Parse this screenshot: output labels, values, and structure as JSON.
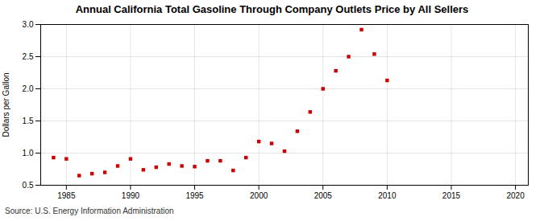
{
  "chart_data": {
    "type": "scatter",
    "title": "Annual California Total Gasoline Through Company Outlets Price by All Sellers",
    "ylabel": "Dollars per Gallon",
    "source": "Source: U.S. Energy Information Administration",
    "color": "#cc0000",
    "marker": "square",
    "grid": true,
    "xlim": [
      1983,
      2021
    ],
    "ylim": [
      0.5,
      3.0
    ],
    "xticks": [
      1985,
      1990,
      1995,
      2000,
      2005,
      2010,
      2015,
      2020
    ],
    "yticks": [
      0.5,
      {
        "value": 1.0,
        "label": "1.0"
      },
      1.5,
      {
        "value": 2.0,
        "label": "2.0"
      },
      2.5,
      {
        "value": 3.0,
        "label": "3.0"
      }
    ],
    "x": [
      1984,
      1985,
      1986,
      1987,
      1988,
      1989,
      1990,
      1991,
      1992,
      1993,
      1994,
      1995,
      1996,
      1997,
      1998,
      1999,
      2000,
      2001,
      2002,
      2003,
      2004,
      2005,
      2006,
      2007,
      2008,
      2009,
      2010
    ],
    "values": [
      0.93,
      0.91,
      0.65,
      0.68,
      0.7,
      0.8,
      0.91,
      0.74,
      0.78,
      0.83,
      0.8,
      0.79,
      0.88,
      0.88,
      0.73,
      0.93,
      1.18,
      1.15,
      1.03,
      1.34,
      1.64,
      2.0,
      2.28,
      2.5,
      2.92,
      2.54,
      2.13
    ]
  }
}
